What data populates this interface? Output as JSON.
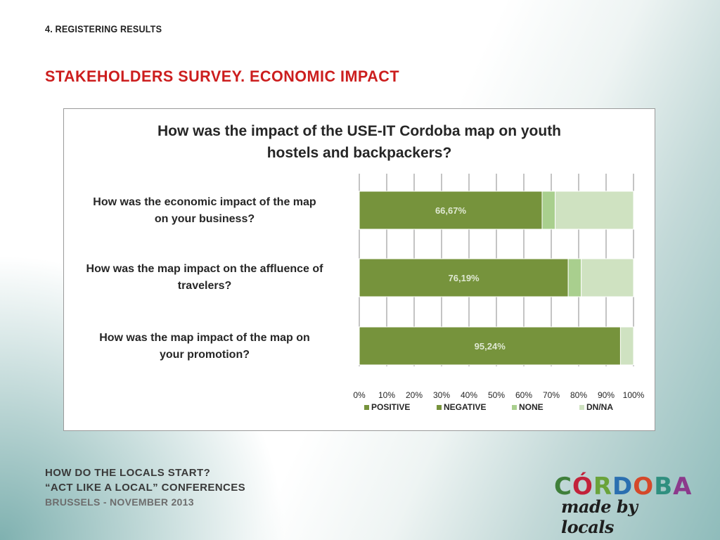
{
  "slide": {
    "section_label": "4. REGISTERING RESULTS",
    "title": "STAKEHOLDERS SURVEY. ECONOMIC IMPACT"
  },
  "chart_data": {
    "type": "bar",
    "orientation": "horizontal",
    "stacked": "percent",
    "title": "How was the impact of the USE-IT Cordoba map on youth hostels and backpackers?",
    "title_lines": [
      "How was the impact of the USE-IT Cordoba map on youth",
      "hostels and backpackers?"
    ],
    "categories": [
      "How was the economic impact of the map on your business?",
      "How was the map impact on the affluence of travelers?",
      "How was the map impact of the map on your promotion?"
    ],
    "category_lines": [
      [
        "How was the economic impact of the map",
        "on your business?"
      ],
      [
        "How was the map impact on the affluence of",
        "travelers?"
      ],
      [
        "How was the map impact of the map on",
        "your promotion?"
      ]
    ],
    "series": [
      {
        "name": "POSITIVE",
        "color": "#76933c",
        "values": [
          66.67,
          76.19,
          95.24
        ]
      },
      {
        "name": "NEGATIVE",
        "color": "#77933c",
        "values": [
          0,
          0,
          0
        ]
      },
      {
        "name": "NONE",
        "color": "#a9cf8e",
        "values": [
          4.76,
          4.76,
          0
        ]
      },
      {
        "name": "DN/NA",
        "color": "#cfe2c1",
        "values": [
          28.57,
          19.05,
          4.76
        ]
      }
    ],
    "data_labels": [
      "66,67%",
      "76,19%",
      "95,24%"
    ],
    "x_ticks": [
      "0%",
      "10%",
      "20%",
      "30%",
      "40%",
      "50%",
      "60%",
      "70%",
      "80%",
      "90%",
      "100%"
    ],
    "xlim": [
      0,
      100
    ],
    "grid": true,
    "legend_position": "bottom"
  },
  "footer": {
    "line1": "HOW DO THE LOCALS START?",
    "line2": "“ACT LIKE A LOCAL” CONFERENCES",
    "line3": "BRUSSELS - NOVEMBER 2013"
  },
  "logo": {
    "letters": [
      "C",
      "Ó",
      "R",
      "D",
      "O",
      "B",
      "A"
    ],
    "tagline": "made by locals"
  }
}
